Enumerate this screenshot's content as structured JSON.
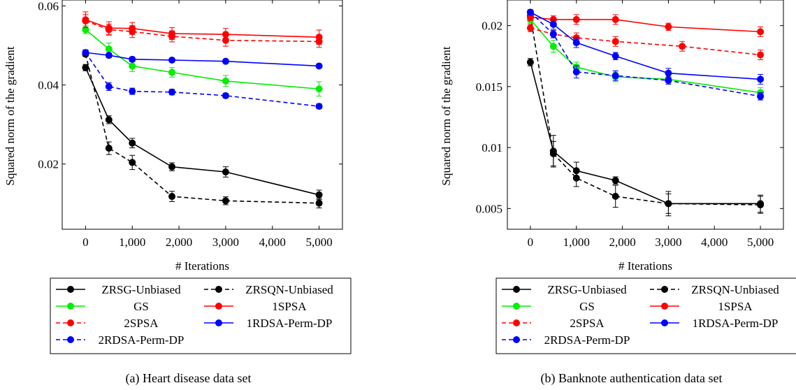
{
  "chart_data": [
    {
      "type": "line",
      "caption": "(a) Heart disease data set",
      "xlabel": "# Iterations",
      "ylabel": "Squared norm of the gradient",
      "xlim": [
        -500,
        5500
      ],
      "ylim": [
        0.0035,
        0.0615
      ],
      "xticks": [
        0,
        1000,
        2000,
        3000,
        4000,
        5000
      ],
      "xtick_labels": [
        "0",
        "1,000",
        "2,000",
        "3,000",
        "4,000",
        "5,000"
      ],
      "yticks": [
        0.02,
        0.04,
        0.06
      ],
      "ytick_labels": [
        "0.02",
        "0.04",
        "0.06"
      ],
      "legend_position": "below",
      "series": [
        {
          "name": "ZRSG-Unbiased",
          "color": "#000000",
          "dashed": false,
          "x": [
            0,
            500,
            1000,
            1850,
            3000,
            5000
          ],
          "y": [
            0.0444,
            0.0312,
            0.0253,
            0.0193,
            0.018,
            0.0122
          ],
          "err": [
            0.0008,
            0.001,
            0.0012,
            0.001,
            0.0013,
            0.0012
          ]
        },
        {
          "name": "ZRSQN-Unbiased",
          "color": "#000000",
          "dashed": true,
          "x": [
            0,
            500,
            1000,
            1850,
            3000,
            5000
          ],
          "y": [
            0.0478,
            0.024,
            0.0204,
            0.0118,
            0.0107,
            0.0101
          ],
          "err": [
            0.0006,
            0.0016,
            0.0018,
            0.0013,
            0.001,
            0.0012
          ]
        },
        {
          "name": "GS",
          "color": "#00ee00",
          "dashed": false,
          "x": [
            0,
            500,
            1000,
            1850,
            3000,
            5000
          ],
          "y": [
            0.054,
            0.0491,
            0.0448,
            0.0432,
            0.041,
            0.039
          ],
          "err": [
            0.001,
            0.0015,
            0.0014,
            0.0012,
            0.0014,
            0.0018
          ]
        },
        {
          "name": "1SPSA",
          "color": "#ff0000",
          "dashed": false,
          "x": [
            0,
            500,
            1000,
            1850,
            3000,
            5000
          ],
          "y": [
            0.0565,
            0.0544,
            0.0543,
            0.053,
            0.0528,
            0.0521
          ],
          "err": [
            0.002,
            0.0016,
            0.0015,
            0.0015,
            0.0015,
            0.0018
          ]
        },
        {
          "name": "2SPSA",
          "color": "#ff0000",
          "dashed": true,
          "x": [
            0,
            500,
            1000,
            1850,
            3000,
            5000
          ],
          "y": [
            0.0562,
            0.054,
            0.0535,
            0.0523,
            0.0513,
            0.051
          ],
          "err": [
            0.0016,
            0.0014,
            0.0015,
            0.0014,
            0.0015,
            0.0015
          ]
        },
        {
          "name": "1RDSA-Perm-DP",
          "color": "#0000ff",
          "dashed": false,
          "x": [
            0,
            500,
            1000,
            1850,
            3000,
            5000
          ],
          "y": [
            0.0482,
            0.0475,
            0.0465,
            0.0463,
            0.046,
            0.0448
          ],
          "err": [
            0.0006,
            0.0006,
            0.0006,
            0.0005,
            0.0005,
            0.0005
          ]
        },
        {
          "name": "2RDSA-Perm-DP",
          "color": "#0000ff",
          "dashed": true,
          "x": [
            0,
            500,
            1000,
            1850,
            3000,
            5000
          ],
          "y": [
            0.0482,
            0.0396,
            0.0384,
            0.0382,
            0.0373,
            0.0346
          ],
          "err": [
            0.0007,
            0.001,
            0.0008,
            0.0007,
            0.0006,
            0.0006
          ]
        }
      ]
    },
    {
      "type": "line",
      "caption": "(b) Banknote authentication data set",
      "xlabel": "# Iterations",
      "ylabel": "Squared norm of the gradient",
      "xlim": [
        -500,
        5500
      ],
      "ylim": [
        0.0033,
        0.0221
      ],
      "xticks": [
        0,
        1000,
        2000,
        3000,
        4000,
        5000
      ],
      "xtick_labels": [
        "0",
        "1,000",
        "2,000",
        "3,000",
        "4,000",
        "5,000"
      ],
      "yticks": [
        0.005,
        0.01,
        0.015,
        0.02
      ],
      "ytick_labels": [
        "0.005",
        "0.01",
        "0.015",
        "0.02"
      ],
      "legend_position": "below",
      "series": [
        {
          "name": "ZRSG-Unbiased",
          "color": "#000000",
          "dashed": false,
          "x": [
            0,
            500,
            1000,
            1850,
            3000,
            5000
          ],
          "y": [
            0.017,
            0.0097,
            0.0081,
            0.0073,
            0.0054,
            0.0054
          ],
          "err": [
            0.0003,
            0.0013,
            0.0007,
            0.0003,
            0.001,
            0.0007
          ]
        },
        {
          "name": "ZRSQN-Unbiased",
          "color": "#000000",
          "dashed": true,
          "x": [
            0,
            500,
            1000,
            1850,
            3000,
            5000
          ],
          "y": [
            0.0208,
            0.0095,
            0.0075,
            0.006,
            0.0054,
            0.0053
          ],
          "err": [
            0.0004,
            0.001,
            0.0007,
            0.0009,
            0.0008,
            0.0007
          ]
        },
        {
          "name": "GS",
          "color": "#00ee00",
          "dashed": false,
          "x": [
            0,
            500,
            1000,
            1850,
            3000,
            5000
          ],
          "y": [
            0.0205,
            0.0183,
            0.0166,
            0.0158,
            0.0156,
            0.0145
          ],
          "err": [
            0.0003,
            0.0005,
            0.0004,
            0.0004,
            0.0004,
            0.0004
          ]
        },
        {
          "name": "1SPSA",
          "color": "#ff0000",
          "dashed": false,
          "x": [
            0,
            500,
            1000,
            1850,
            3000,
            5000
          ],
          "y": [
            0.0207,
            0.0205,
            0.0205,
            0.0205,
            0.0199,
            0.0195
          ],
          "err": [
            0.0003,
            0.0003,
            0.0004,
            0.0004,
            0.0003,
            0.0004
          ]
        },
        {
          "name": "2SPSA",
          "color": "#ff0000",
          "dashed": true,
          "x": [
            0,
            500,
            1000,
            1850,
            3300,
            5000
          ],
          "y": [
            0.0198,
            0.0193,
            0.019,
            0.0187,
            0.0183,
            0.0176
          ],
          "err": [
            0.0003,
            0.0003,
            0.0004,
            0.0004,
            0.0004,
            0.0004
          ]
        },
        {
          "name": "1RDSA-Perm-DP",
          "color": "#0000ff",
          "dashed": false,
          "x": [
            0,
            500,
            1000,
            1850,
            3000,
            5000
          ],
          "y": [
            0.0211,
            0.0201,
            0.0186,
            0.0175,
            0.0161,
            0.0156
          ],
          "err": [
            0.0002,
            0.0004,
            0.0004,
            0.0003,
            0.0004,
            0.0004
          ]
        },
        {
          "name": "2RDSA-Perm-DP",
          "color": "#0000ff",
          "dashed": true,
          "x": [
            0,
            500,
            1000,
            1850,
            3000,
            5000
          ],
          "y": [
            0.0211,
            0.0193,
            0.0162,
            0.0159,
            0.0155,
            0.0142
          ],
          "err": [
            0.0002,
            0.0003,
            0.0005,
            0.0004,
            0.0003,
            0.0003
          ]
        }
      ]
    }
  ]
}
